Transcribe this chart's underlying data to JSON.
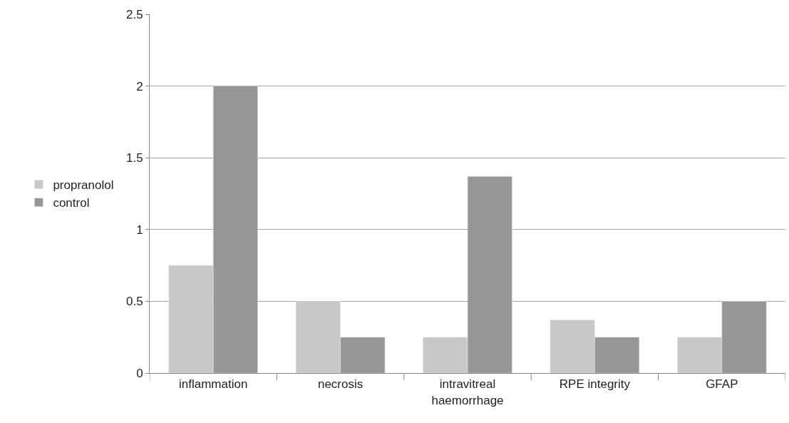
{
  "chart_data": {
    "type": "bar",
    "categories": [
      "inflammation",
      "necrosis",
      "intravitreal haemorrhage",
      "RPE integrity",
      "GFAP"
    ],
    "series": [
      {
        "name": "propranolol",
        "color": "#c8c8c8",
        "values": [
          0.75,
          0.5,
          0.25,
          0.37,
          0.25
        ]
      },
      {
        "name": "control",
        "color": "#969696",
        "values": [
          2,
          0.25,
          1.37,
          0.25,
          0.5
        ]
      }
    ],
    "ylim": [
      0,
      2.5
    ],
    "yticks": [
      0,
      0.5,
      1,
      1.5,
      2,
      2.5
    ],
    "grid": "y",
    "legend": "left"
  }
}
